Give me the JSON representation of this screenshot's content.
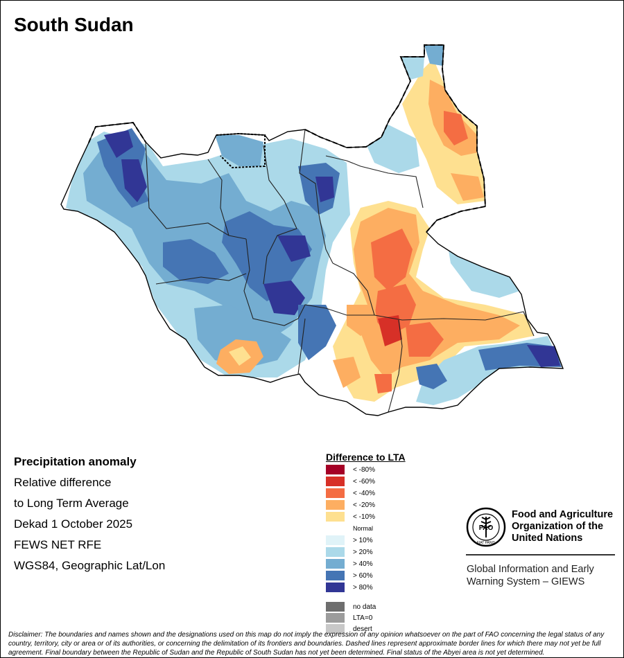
{
  "title": "South Sudan",
  "info": {
    "heading": "Precipitation anomaly",
    "line1": "Relative difference",
    "line2": "to Long Term Average",
    "line3": "Dekad 1 October 2025",
    "line4": "FEWS NET RFE",
    "line5": "WGS84, Geographic Lat/Lon"
  },
  "legend": {
    "title": "Difference to LTA",
    "items": [
      {
        "label": "< -80%",
        "color": "#a50026"
      },
      {
        "label": "< -60%",
        "color": "#d73027"
      },
      {
        "label": "< -40%",
        "color": "#f46d43"
      },
      {
        "label": "< -20%",
        "color": "#fdae61"
      },
      {
        "label": "< -10%",
        "color": "#fee090"
      },
      {
        "label": "Normal",
        "color": "#ffffff"
      },
      {
        "label": "> 10%",
        "color": "#e0f3f8"
      },
      {
        "label": "> 20%",
        "color": "#abd9e9"
      },
      {
        "label": "> 40%",
        "color": "#74add1"
      },
      {
        "label": "> 60%",
        "color": "#4575b4"
      },
      {
        "label": "> 80%",
        "color": "#313695"
      },
      {
        "label": "no data",
        "color": "#6e6e6e"
      },
      {
        "label": "LTA=0",
        "color": "#9c9c9c"
      },
      {
        "label": "desert",
        "color": "#c8c8c8"
      }
    ]
  },
  "org": {
    "logo_text": "FAO",
    "logo_motto": "FIAT PANIS",
    "name_line1": "Food and Agriculture",
    "name_line2": "Organization of the",
    "name_line3": "United Nations",
    "system_line1": "Global Information and Early",
    "system_line2": "Warning System – GIEWS"
  },
  "disclaimer": "Disclaimer: The boundaries and names shown and the designations used on this map do not imply the expression of any opinion whatsoever on the part of FAO concerning the legal status of any country, territory, city or area or of its authorities, or concerning the delimitation of its frontiers and boundaries. Dashed lines represent approximate border lines for which there may not yet be full agreement.  Final boundary between the Republic of Sudan and the Republic of South Sudan has not yet been determined. Final status of the Abyei area is not yet determined."
}
